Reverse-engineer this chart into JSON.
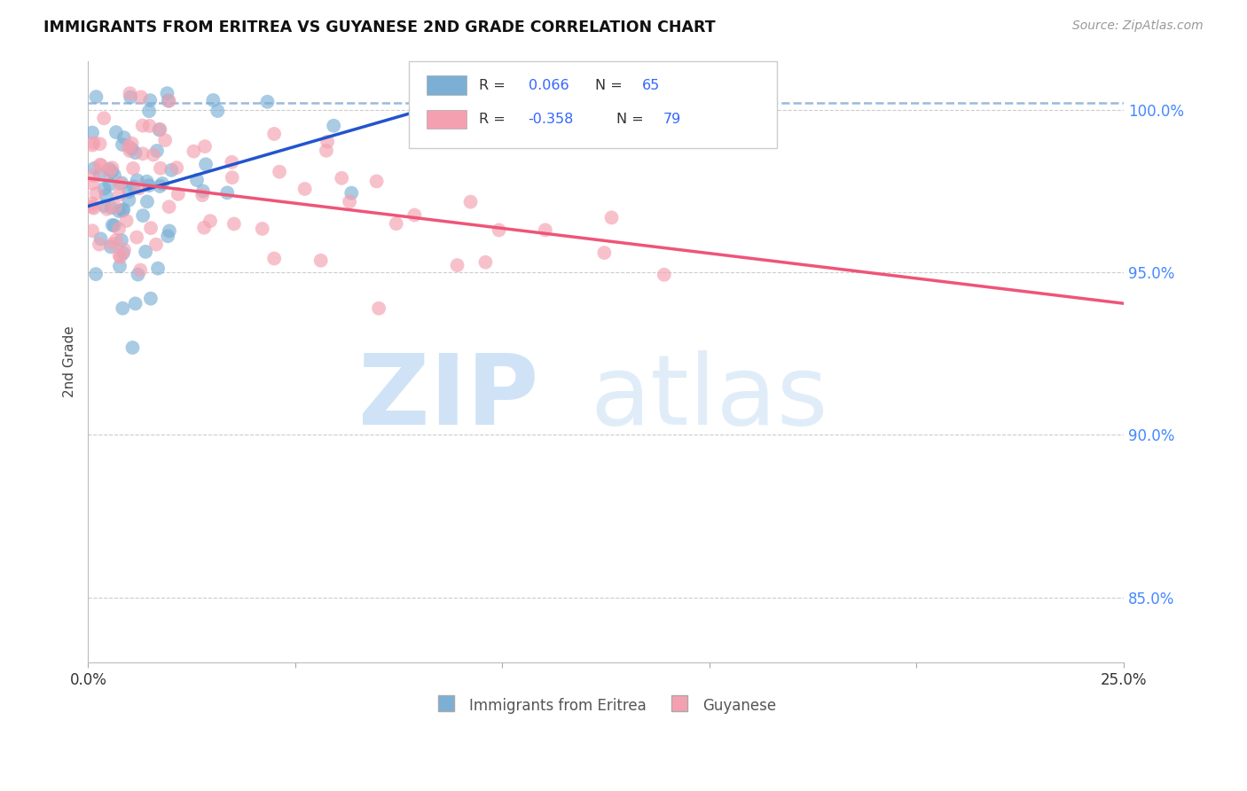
{
  "title": "IMMIGRANTS FROM ERITREA VS GUYANESE 2ND GRADE CORRELATION CHART",
  "source": "Source: ZipAtlas.com",
  "ylabel": "2nd Grade",
  "xlim": [
    0.0,
    0.25
  ],
  "ylim": [
    0.83,
    1.015
  ],
  "yticks": [
    0.85,
    0.9,
    0.95,
    1.0
  ],
  "ytick_labels": [
    "85.0%",
    "90.0%",
    "95.0%",
    "100.0%"
  ],
  "xtick_labels": [
    "0.0%",
    "",
    "",
    "",
    "",
    "25.0%"
  ],
  "color_blue": "#7BAFD4",
  "color_pink": "#F4A0B0",
  "color_blue_line": "#2255CC",
  "color_pink_line": "#EE5577",
  "color_blue_dash": "#99BBDD",
  "seed": 123,
  "blue_n": 65,
  "pink_n": 79,
  "blue_R": 0.066,
  "pink_R": -0.358,
  "watermark_zip": "ZIP",
  "watermark_atlas": "atlas"
}
